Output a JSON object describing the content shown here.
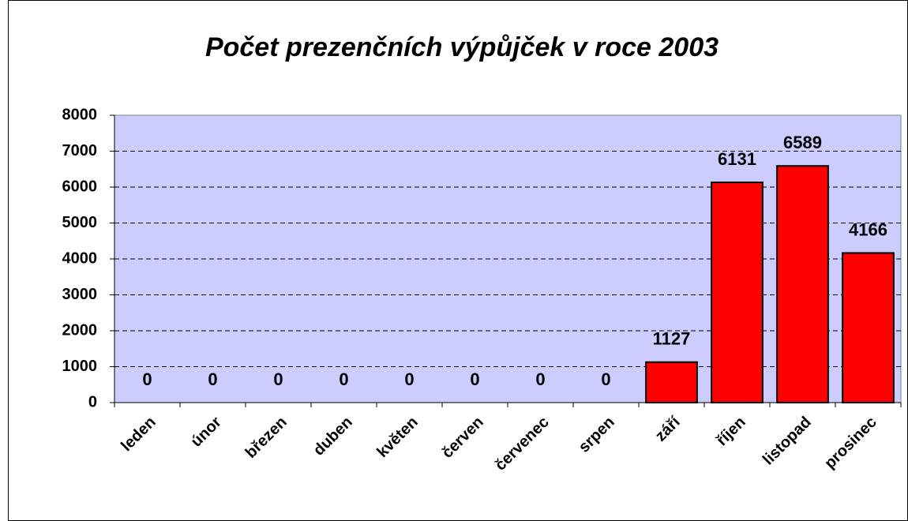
{
  "chart_data": {
    "type": "bar",
    "title": "Počet prezenčních výpůjček v roce 2003",
    "categories": [
      "leden",
      "únor",
      "březen",
      "duben",
      "květen",
      "červen",
      "červenec",
      "srpen",
      "září",
      "říjen",
      "listopad",
      "prosinec"
    ],
    "values": [
      0,
      0,
      0,
      0,
      0,
      0,
      0,
      0,
      1127,
      6131,
      6589,
      4166
    ],
    "color": "#ff0000",
    "plot_background": "#ccccff",
    "ylim": [
      0,
      8000
    ],
    "yticks": [
      0,
      1000,
      2000,
      3000,
      4000,
      5000,
      6000,
      7000,
      8000
    ],
    "grid": true
  }
}
